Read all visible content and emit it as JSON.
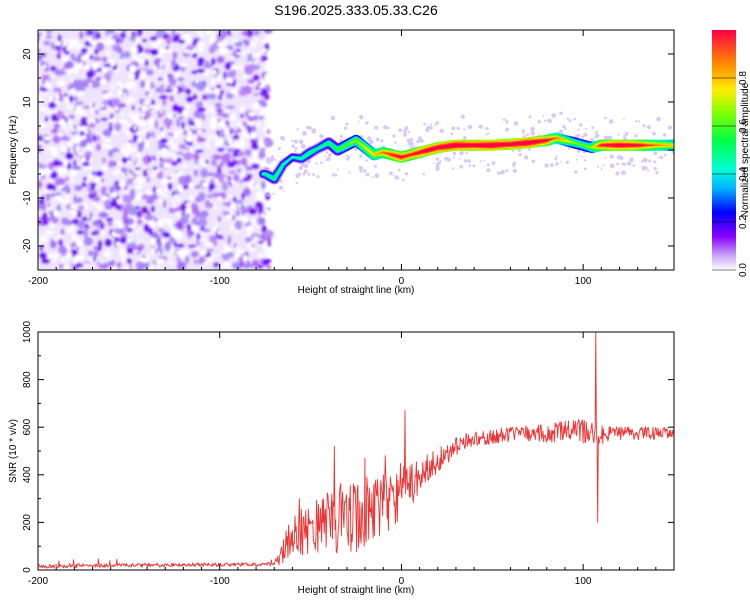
{
  "title": "S196.2025.333.05.33.C26",
  "chart_data": [
    {
      "type": "heatmap",
      "panel": "spectrogram",
      "xlabel": "Height of straight line (km)",
      "ylabel": "Frequency (Hz)",
      "xlim": [
        -200,
        150
      ],
      "ylim": [
        -25,
        25
      ],
      "xticks": [
        -200,
        -100,
        0,
        100
      ],
      "xtick_labels": [
        "-200",
        "-100",
        "0",
        "100"
      ],
      "yticks": [
        -20,
        -10,
        0,
        10,
        20
      ],
      "ytick_labels": [
        "-20",
        "-10",
        "0",
        "10",
        "20"
      ],
      "noise_region_x": [
        -200,
        -75
      ],
      "signal_track": {
        "x": [
          -75,
          -70,
          -65,
          -60,
          -55,
          -50,
          -45,
          -40,
          -35,
          -30,
          -25,
          -20,
          -15,
          -10,
          -5,
          0,
          5,
          10,
          15,
          20,
          30,
          40,
          50,
          60,
          70,
          80,
          85,
          90,
          95,
          100,
          105,
          110,
          120,
          130,
          140,
          150
        ],
        "freq": [
          -5,
          -6,
          -3,
          -1.5,
          -1.8,
          -0.5,
          0.5,
          1.5,
          0,
          1,
          2,
          0.5,
          -1,
          -0.5,
          -1,
          -1.5,
          -1,
          -0.5,
          0,
          0.5,
          1,
          1,
          1,
          1.2,
          1.5,
          2,
          2.5,
          2,
          1.5,
          1,
          0.5,
          1,
          1,
          1,
          1,
          1
        ],
        "amplitude": [
          0.3,
          0.35,
          0.3,
          0.25,
          0.3,
          0.35,
          0.3,
          0.35,
          0.4,
          0.45,
          0.5,
          0.55,
          0.6,
          0.7,
          0.8,
          0.85,
          0.8,
          0.85,
          0.9,
          0.9,
          0.95,
          0.9,
          0.95,
          0.9,
          0.95,
          0.85,
          0.7,
          0.6,
          0.5,
          0.45,
          0.5,
          0.8,
          0.9,
          0.85,
          0.7,
          0.6
        ]
      },
      "colorbar": {
        "label": "Normalized spectral amplitude",
        "ticks": [
          0.0,
          0.2,
          0.4,
          0.6,
          0.8
        ],
        "tick_labels": [
          "0.0",
          "0.2",
          "0.4",
          "0.6",
          "0.8"
        ],
        "range": [
          0,
          1
        ]
      }
    },
    {
      "type": "line",
      "panel": "snr",
      "xlabel": "Height of straight line (km)",
      "ylabel": "SNR (10 * v/v)",
      "xlim": [
        -200,
        150
      ],
      "ylim": [
        0,
        1000
      ],
      "xticks": [
        -200,
        -100,
        0,
        100
      ],
      "xtick_labels": [
        "-200",
        "-100",
        "0",
        "100"
      ],
      "yticks": [
        0,
        200,
        400,
        600,
        800,
        1000
      ],
      "ytick_labels": [
        "0",
        "200",
        "400",
        "600",
        "800",
        "1000"
      ],
      "series": [
        {
          "name": "SNR",
          "color": "#ee3333",
          "x": [
            -200,
            -180,
            -160,
            -140,
            -120,
            -100,
            -80,
            -70,
            -65,
            -60,
            -55,
            -50,
            -45,
            -40,
            -35,
            -30,
            -25,
            -20,
            -15,
            -10,
            -5,
            0,
            5,
            10,
            15,
            20,
            25,
            30,
            35,
            40,
            50,
            60,
            70,
            80,
            90,
            100,
            105,
            110,
            120,
            130,
            140,
            150
          ],
          "y": [
            15,
            18,
            20,
            20,
            22,
            22,
            22,
            25,
            80,
            150,
            160,
            180,
            200,
            200,
            210,
            220,
            230,
            240,
            260,
            280,
            310,
            330,
            360,
            390,
            430,
            460,
            490,
            520,
            540,
            550,
            560,
            570,
            575,
            575,
            580,
            580,
            575,
            570,
            570,
            575,
            575,
            570
          ],
          "spikes": [
            {
              "x": -56,
              "y": 300
            },
            {
              "x": -37,
              "y": 520
            },
            {
              "x": -20,
              "y": 470
            },
            {
              "x": -9,
              "y": 480
            },
            {
              "x": 2,
              "y": 670
            },
            {
              "x": 107,
              "y": 1000
            },
            {
              "x": 108,
              "y": 200
            }
          ],
          "noise_amplitude": {
            "x": [
              -200,
              -70,
              -65,
              -50,
              -30,
              -10,
              0,
              10,
              20,
              40,
              60,
              80,
              100,
              110,
              130,
              150
            ],
            "amp": [
              8,
              8,
              60,
              120,
              160,
              140,
              120,
              70,
              50,
              30,
              30,
              40,
              55,
              40,
              30,
              25
            ]
          }
        }
      ]
    }
  ]
}
